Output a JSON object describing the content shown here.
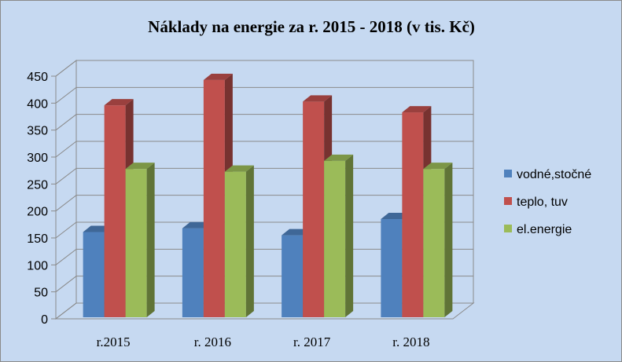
{
  "chart_data": {
    "type": "bar",
    "style": "3d-clustered-column",
    "title": "Náklady na energie za r. 2015 - 2018 (v tis. Kč)",
    "xlabel": "",
    "ylabel": "",
    "categories": [
      "r.2015",
      "r. 2016",
      "r. 2017",
      "r. 2018"
    ],
    "series": [
      {
        "name": "vodné,stočné",
        "values": [
          158,
          165,
          152,
          182
        ],
        "color": "#4f81bd"
      },
      {
        "name": "teplo, tuv",
        "values": [
          393,
          440,
          400,
          380
        ],
        "color": "#c0504d"
      },
      {
        "name": "el.energie",
        "values": [
          275,
          270,
          290,
          275
        ],
        "color": "#9bbb59"
      }
    ],
    "ylim": [
      0,
      450
    ],
    "yticks": [
      0,
      50,
      100,
      150,
      200,
      250,
      300,
      350,
      400,
      450
    ],
    "grid": true,
    "legend_position": "right",
    "background": "#c6d9f1"
  }
}
